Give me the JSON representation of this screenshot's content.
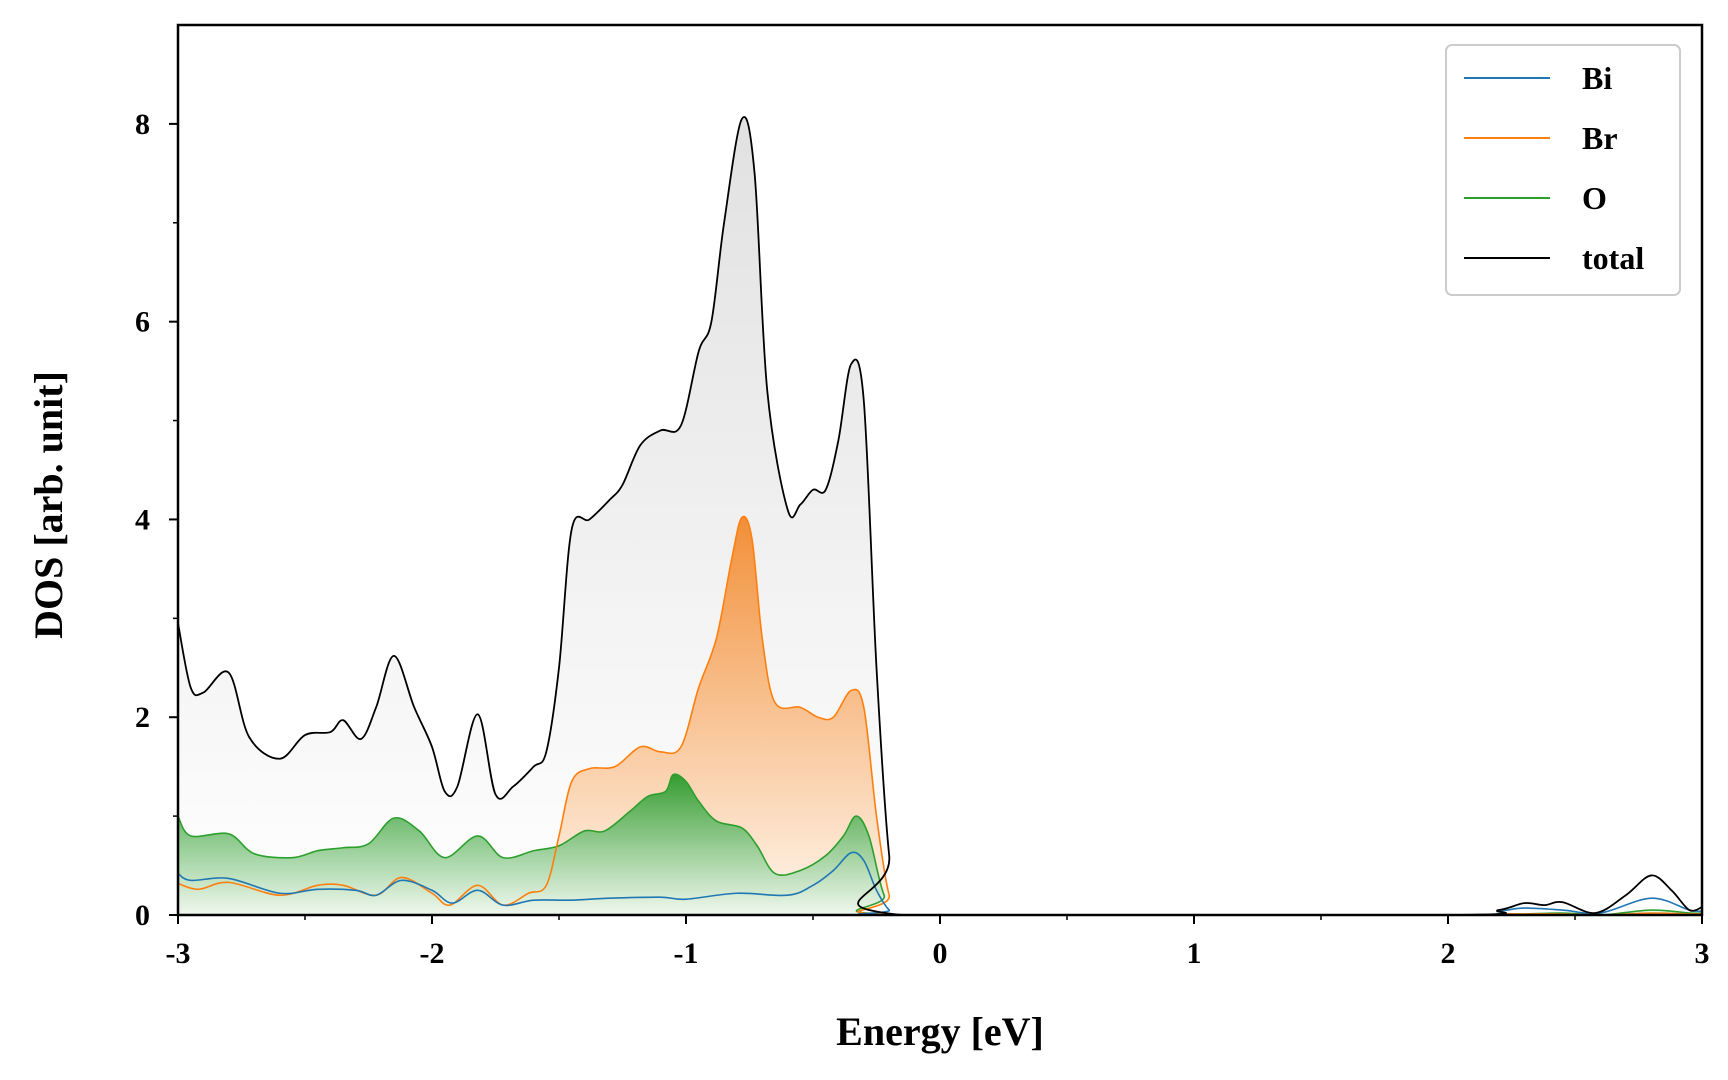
{
  "chart_data": {
    "type": "area",
    "title": "",
    "xlabel": "Energy [eV]",
    "ylabel": "DOS [arb. unit]",
    "xlim": [
      -3,
      3
    ],
    "ylim": [
      0,
      9
    ],
    "x_ticks": [
      -3,
      -2,
      -1,
      0,
      1,
      2,
      3
    ],
    "x_tick_labels": [
      "-3",
      "-2",
      "-1",
      "0",
      "1",
      "2",
      "3"
    ],
    "y_ticks": [
      0,
      2,
      4,
      6,
      8
    ],
    "y_tick_labels": [
      "0",
      "2",
      "4",
      "6",
      "8"
    ],
    "grid": false,
    "legend_position": "top-right",
    "series": [
      {
        "name": "Bi",
        "color": "#1f77b4",
        "filled": false,
        "points": [
          [
            -3.0,
            0.42
          ],
          [
            -2.95,
            0.35
          ],
          [
            -2.8,
            0.37
          ],
          [
            -2.6,
            0.22
          ],
          [
            -2.45,
            0.26
          ],
          [
            -2.3,
            0.25
          ],
          [
            -2.22,
            0.2
          ],
          [
            -2.12,
            0.35
          ],
          [
            -2.0,
            0.25
          ],
          [
            -1.92,
            0.12
          ],
          [
            -1.82,
            0.25
          ],
          [
            -1.72,
            0.1
          ],
          [
            -1.6,
            0.15
          ],
          [
            -1.45,
            0.15
          ],
          [
            -1.3,
            0.17
          ],
          [
            -1.1,
            0.18
          ],
          [
            -1.0,
            0.16
          ],
          [
            -0.8,
            0.22
          ],
          [
            -0.6,
            0.2
          ],
          [
            -0.5,
            0.3
          ],
          [
            -0.42,
            0.45
          ],
          [
            -0.35,
            0.63
          ],
          [
            -0.3,
            0.55
          ],
          [
            -0.25,
            0.25
          ],
          [
            -0.2,
            0.05
          ],
          [
            -0.15,
            0.0
          ],
          [
            2.0,
            0.0
          ],
          [
            2.2,
            0.04
          ],
          [
            2.3,
            0.07
          ],
          [
            2.45,
            0.05
          ],
          [
            2.6,
            0.02
          ],
          [
            2.8,
            0.17
          ],
          [
            2.95,
            0.05
          ],
          [
            3.0,
            0.04
          ]
        ]
      },
      {
        "name": "Br",
        "color": "#ff7f0e",
        "filled": true,
        "points": [
          [
            -3.0,
            0.32
          ],
          [
            -2.92,
            0.26
          ],
          [
            -2.8,
            0.33
          ],
          [
            -2.6,
            0.2
          ],
          [
            -2.45,
            0.3
          ],
          [
            -2.35,
            0.3
          ],
          [
            -2.22,
            0.2
          ],
          [
            -2.12,
            0.38
          ],
          [
            -2.0,
            0.22
          ],
          [
            -1.93,
            0.1
          ],
          [
            -1.82,
            0.3
          ],
          [
            -1.72,
            0.1
          ],
          [
            -1.62,
            0.22
          ],
          [
            -1.55,
            0.3
          ],
          [
            -1.5,
            0.8
          ],
          [
            -1.45,
            1.35
          ],
          [
            -1.38,
            1.48
          ],
          [
            -1.28,
            1.5
          ],
          [
            -1.18,
            1.7
          ],
          [
            -1.1,
            1.65
          ],
          [
            -1.02,
            1.7
          ],
          [
            -0.95,
            2.3
          ],
          [
            -0.88,
            2.8
          ],
          [
            -0.82,
            3.6
          ],
          [
            -0.78,
            4.02
          ],
          [
            -0.74,
            3.8
          ],
          [
            -0.7,
            2.8
          ],
          [
            -0.65,
            2.15
          ],
          [
            -0.55,
            2.1
          ],
          [
            -0.48,
            2.0
          ],
          [
            -0.42,
            2.0
          ],
          [
            -0.35,
            2.27
          ],
          [
            -0.3,
            2.1
          ],
          [
            -0.25,
            1.0
          ],
          [
            -0.2,
            0.2
          ],
          [
            -0.15,
            0.0
          ],
          [
            2.0,
            0.0
          ],
          [
            2.2,
            0.01
          ],
          [
            2.3,
            0.01
          ],
          [
            2.45,
            0.01
          ],
          [
            2.6,
            0.0
          ],
          [
            2.8,
            0.02
          ],
          [
            2.95,
            0.01
          ],
          [
            3.0,
            0.01
          ]
        ]
      },
      {
        "name": "O",
        "color": "#2ca02c",
        "filled": true,
        "points": [
          [
            -3.0,
            1.0
          ],
          [
            -2.95,
            0.8
          ],
          [
            -2.8,
            0.82
          ],
          [
            -2.7,
            0.62
          ],
          [
            -2.55,
            0.58
          ],
          [
            -2.45,
            0.65
          ],
          [
            -2.35,
            0.68
          ],
          [
            -2.25,
            0.72
          ],
          [
            -2.15,
            0.98
          ],
          [
            -2.05,
            0.85
          ],
          [
            -1.95,
            0.58
          ],
          [
            -1.82,
            0.8
          ],
          [
            -1.72,
            0.58
          ],
          [
            -1.6,
            0.65
          ],
          [
            -1.5,
            0.7
          ],
          [
            -1.4,
            0.85
          ],
          [
            -1.32,
            0.85
          ],
          [
            -1.22,
            1.05
          ],
          [
            -1.15,
            1.2
          ],
          [
            -1.08,
            1.25
          ],
          [
            -1.05,
            1.42
          ],
          [
            -1.0,
            1.35
          ],
          [
            -0.95,
            1.15
          ],
          [
            -0.88,
            0.95
          ],
          [
            -0.78,
            0.88
          ],
          [
            -0.72,
            0.7
          ],
          [
            -0.65,
            0.42
          ],
          [
            -0.55,
            0.45
          ],
          [
            -0.45,
            0.6
          ],
          [
            -0.38,
            0.8
          ],
          [
            -0.33,
            1.0
          ],
          [
            -0.28,
            0.8
          ],
          [
            -0.22,
            0.2
          ],
          [
            -0.15,
            0.0
          ],
          [
            2.0,
            0.0
          ],
          [
            2.2,
            0.01
          ],
          [
            2.3,
            0.01
          ],
          [
            2.45,
            0.02
          ],
          [
            2.6,
            0.0
          ],
          [
            2.8,
            0.05
          ],
          [
            2.95,
            0.02
          ],
          [
            3.0,
            0.02
          ]
        ]
      },
      {
        "name": "total",
        "color": "#000000",
        "filled": true,
        "points": [
          [
            -3.0,
            2.95
          ],
          [
            -2.95,
            2.3
          ],
          [
            -2.9,
            2.25
          ],
          [
            -2.8,
            2.45
          ],
          [
            -2.72,
            1.8
          ],
          [
            -2.6,
            1.58
          ],
          [
            -2.5,
            1.82
          ],
          [
            -2.4,
            1.85
          ],
          [
            -2.35,
            1.97
          ],
          [
            -2.28,
            1.78
          ],
          [
            -2.22,
            2.1
          ],
          [
            -2.15,
            2.62
          ],
          [
            -2.07,
            2.1
          ],
          [
            -2.0,
            1.7
          ],
          [
            -1.95,
            1.25
          ],
          [
            -1.9,
            1.3
          ],
          [
            -1.82,
            2.03
          ],
          [
            -1.75,
            1.22
          ],
          [
            -1.68,
            1.3
          ],
          [
            -1.6,
            1.5
          ],
          [
            -1.55,
            1.65
          ],
          [
            -1.5,
            2.5
          ],
          [
            -1.45,
            3.9
          ],
          [
            -1.38,
            4.0
          ],
          [
            -1.3,
            4.2
          ],
          [
            -1.25,
            4.35
          ],
          [
            -1.18,
            4.75
          ],
          [
            -1.1,
            4.9
          ],
          [
            -1.02,
            4.95
          ],
          [
            -0.95,
            5.7
          ],
          [
            -0.9,
            6.0
          ],
          [
            -0.85,
            7.0
          ],
          [
            -0.78,
            8.05
          ],
          [
            -0.73,
            7.5
          ],
          [
            -0.68,
            5.3
          ],
          [
            -0.6,
            4.1
          ],
          [
            -0.55,
            4.15
          ],
          [
            -0.5,
            4.3
          ],
          [
            -0.45,
            4.3
          ],
          [
            -0.4,
            4.8
          ],
          [
            -0.35,
            5.57
          ],
          [
            -0.3,
            5.2
          ],
          [
            -0.25,
            2.5
          ],
          [
            -0.2,
            0.6
          ],
          [
            -0.15,
            0.0
          ],
          [
            2.0,
            0.0
          ],
          [
            2.2,
            0.05
          ],
          [
            2.3,
            0.12
          ],
          [
            2.38,
            0.1
          ],
          [
            2.45,
            0.13
          ],
          [
            2.58,
            0.02
          ],
          [
            2.7,
            0.2
          ],
          [
            2.8,
            0.4
          ],
          [
            2.88,
            0.25
          ],
          [
            2.95,
            0.05
          ],
          [
            3.0,
            0.08
          ]
        ]
      }
    ]
  }
}
